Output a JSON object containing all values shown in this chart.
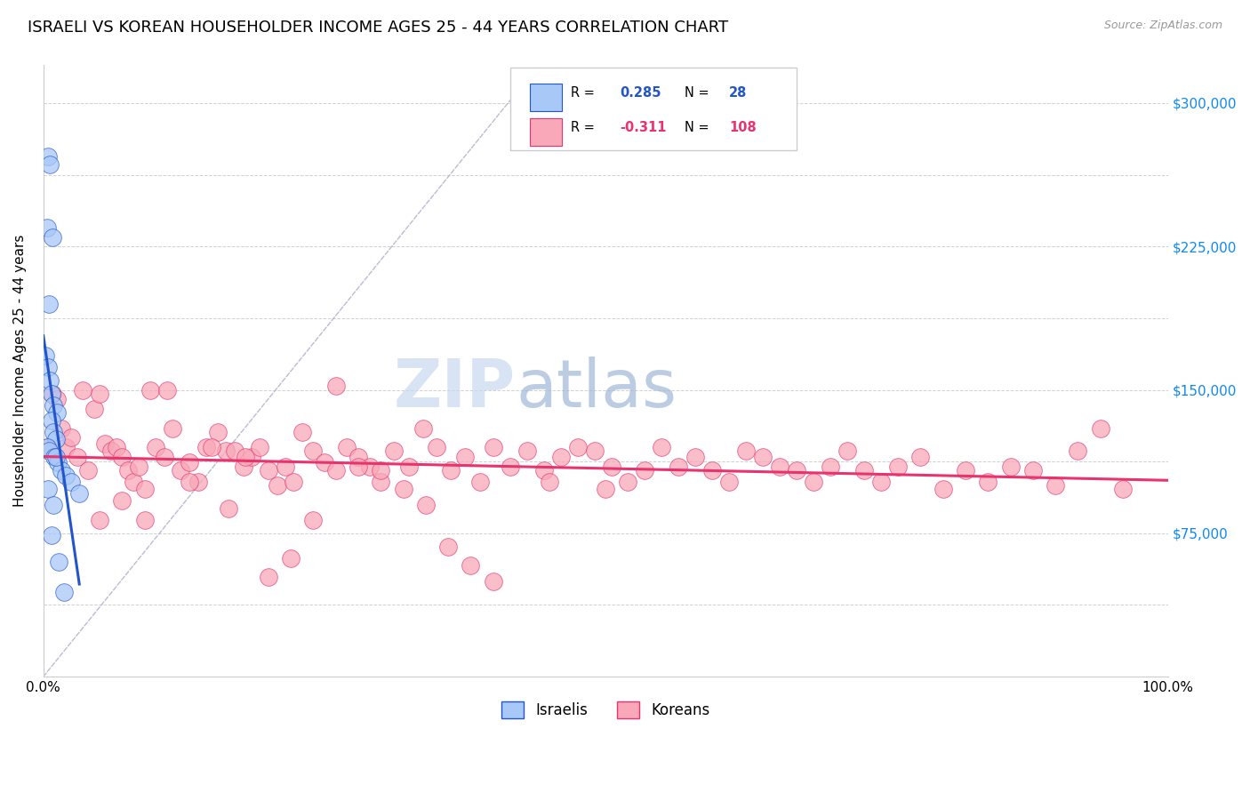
{
  "title": "ISRAELI VS KOREAN HOUSEHOLDER INCOME AGES 25 - 44 YEARS CORRELATION CHART",
  "source": "Source: ZipAtlas.com",
  "ylabel": "Householder Income Ages 25 - 44 years",
  "xmin": 0.0,
  "xmax": 1.0,
  "ymin": 0,
  "ymax": 320000,
  "yticks": [
    0,
    37500,
    75000,
    112500,
    150000,
    187500,
    225000,
    262500,
    300000
  ],
  "right_ytick_labels": [
    "$75,000",
    "$150,000",
    "$225,000",
    "$300,000"
  ],
  "right_yticks": [
    75000,
    150000,
    225000,
    300000
  ],
  "xticks": [
    0.0,
    0.1,
    0.2,
    0.3,
    0.4,
    0.5,
    0.6,
    0.7,
    0.8,
    0.9,
    1.0
  ],
  "xtick_labels": [
    "0.0%",
    "",
    "",
    "",
    "",
    "",
    "",
    "",
    "",
    "",
    "100.0%"
  ],
  "israeli_R": 0.285,
  "israeli_N": 28,
  "korean_R": -0.311,
  "korean_N": 108,
  "israeli_color": "#a8c8f8",
  "korean_color": "#f8a8b8",
  "israeli_line_color": "#2255cc",
  "korean_line_color": "#e8336e",
  "ref_line_color": "#aaaacc",
  "watermark_zip_color": "#c8d8f0",
  "watermark_atlas_color": "#a0b8d8",
  "israelis_x": [
    0.004,
    0.006,
    0.003,
    0.008,
    0.005,
    0.002,
    0.004,
    0.006,
    0.007,
    0.009,
    0.012,
    0.007,
    0.009,
    0.011,
    0.003,
    0.005,
    0.01,
    0.013,
    0.016,
    0.02,
    0.025,
    0.004,
    0.032,
    0.009,
    0.007,
    0.014,
    0.018,
    0.011
  ],
  "israelis_y": [
    272000,
    268000,
    235000,
    230000,
    195000,
    168000,
    162000,
    155000,
    148000,
    142000,
    138000,
    134000,
    128000,
    124000,
    120000,
    118000,
    115000,
    112000,
    108000,
    105000,
    102000,
    98000,
    96000,
    90000,
    74000,
    60000,
    44000,
    115000
  ],
  "koreans_x": [
    0.004,
    0.008,
    0.012,
    0.016,
    0.02,
    0.025,
    0.03,
    0.035,
    0.04,
    0.045,
    0.05,
    0.055,
    0.06,
    0.065,
    0.07,
    0.075,
    0.08,
    0.085,
    0.09,
    0.095,
    0.1,
    0.108,
    0.115,
    0.122,
    0.13,
    0.138,
    0.145,
    0.155,
    0.162,
    0.17,
    0.178,
    0.185,
    0.192,
    0.2,
    0.208,
    0.215,
    0.222,
    0.23,
    0.24,
    0.25,
    0.26,
    0.27,
    0.28,
    0.29,
    0.3,
    0.312,
    0.325,
    0.338,
    0.35,
    0.362,
    0.375,
    0.388,
    0.4,
    0.415,
    0.43,
    0.445,
    0.46,
    0.475,
    0.49,
    0.505,
    0.52,
    0.535,
    0.55,
    0.565,
    0.58,
    0.595,
    0.61,
    0.625,
    0.64,
    0.655,
    0.67,
    0.685,
    0.7,
    0.715,
    0.73,
    0.745,
    0.76,
    0.78,
    0.8,
    0.82,
    0.84,
    0.86,
    0.88,
    0.9,
    0.92,
    0.94,
    0.96,
    0.05,
    0.07,
    0.09,
    0.11,
    0.13,
    0.15,
    0.165,
    0.18,
    0.2,
    0.22,
    0.24,
    0.26,
    0.28,
    0.3,
    0.32,
    0.34,
    0.36,
    0.38,
    0.4,
    0.45,
    0.5
  ],
  "koreans_y": [
    120000,
    148000,
    145000,
    130000,
    120000,
    125000,
    115000,
    150000,
    108000,
    140000,
    148000,
    122000,
    118000,
    120000,
    115000,
    108000,
    102000,
    110000,
    98000,
    150000,
    120000,
    115000,
    130000,
    108000,
    112000,
    102000,
    120000,
    128000,
    118000,
    118000,
    110000,
    115000,
    120000,
    108000,
    100000,
    110000,
    102000,
    128000,
    118000,
    112000,
    108000,
    120000,
    115000,
    110000,
    102000,
    118000,
    110000,
    130000,
    120000,
    108000,
    115000,
    102000,
    120000,
    110000,
    118000,
    108000,
    115000,
    120000,
    118000,
    110000,
    102000,
    108000,
    120000,
    110000,
    115000,
    108000,
    102000,
    118000,
    115000,
    110000,
    108000,
    102000,
    110000,
    118000,
    108000,
    102000,
    110000,
    115000,
    98000,
    108000,
    102000,
    110000,
    108000,
    100000,
    118000,
    130000,
    98000,
    82000,
    92000,
    82000,
    150000,
    102000,
    120000,
    88000,
    115000,
    52000,
    62000,
    82000,
    152000,
    110000,
    108000,
    98000,
    90000,
    68000,
    58000,
    50000,
    102000,
    98000
  ]
}
